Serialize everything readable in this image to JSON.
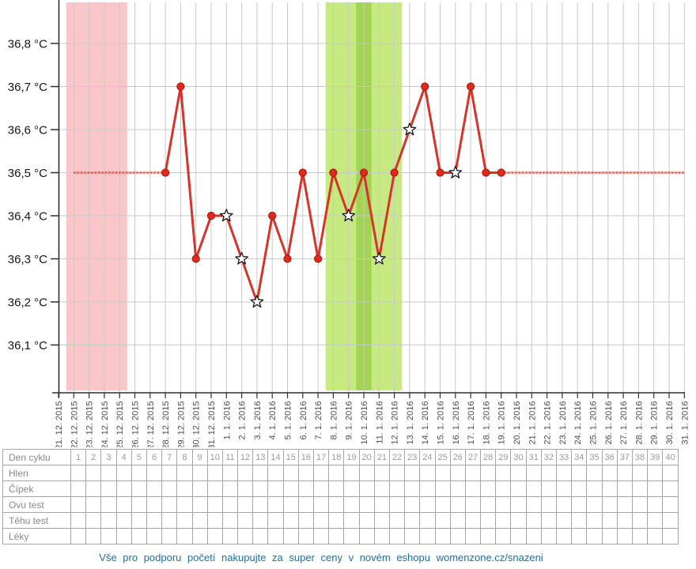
{
  "chart_data": {
    "type": "line",
    "title": "",
    "unit": "°C",
    "ylim": [
      36.0,
      36.9
    ],
    "grid": true,
    "legend": "none",
    "y_ticks": [
      {
        "value": 36.8,
        "label": "36,8 °C"
      },
      {
        "value": 36.7,
        "label": "36,7 °C"
      },
      {
        "value": 36.6,
        "label": "36,6 °C"
      },
      {
        "value": 36.5,
        "label": "36,5 °C"
      },
      {
        "value": 36.4,
        "label": "36,4 °C"
      },
      {
        "value": 36.3,
        "label": "36,3 °C"
      },
      {
        "value": 36.2,
        "label": "36,2 °C"
      },
      {
        "value": 36.1,
        "label": "36,1 °C"
      }
    ],
    "x_dates": [
      "21. 12. 2015",
      "22. 12. 2015",
      "23. 12. 2015",
      "24. 12. 2015",
      "25. 12. 2015",
      "26. 12. 2015",
      "27. 12. 2015",
      "28. 12. 2015",
      "29. 12. 2015",
      "30. 12. 2015",
      "31. 12. 2015",
      "1. 1. 2016",
      "2. 1. 2016",
      "3. 1. 2016",
      "4. 1. 2016",
      "5. 1. 2016",
      "6. 1. 2016",
      "7. 1. 2016",
      "8. 1. 2016",
      "9. 1. 2016",
      "10. 1. 2016",
      "11. 1. 2016",
      "12. 1. 2016",
      "13. 1. 2016",
      "14. 1. 2016",
      "15. 1. 2016",
      "16. 1. 2016",
      "17. 1. 2016",
      "18. 1. 2016",
      "19. 1. 2016",
      "20. 1. 2016",
      "21. 1. 2016",
      "22. 1. 2016",
      "23. 1. 2016",
      "24. 1. 2016",
      "25. 1. 2016",
      "26. 1. 2016",
      "27. 1. 2016",
      "28. 1. 2016",
      "29. 1. 2016",
      "30. 1. 2016",
      "31. 1. 2016"
    ],
    "bands": [
      {
        "name": "menstruation",
        "color": "#f9c7ca",
        "from": "22. 12. 2015",
        "to": "25. 12. 2015"
      },
      {
        "name": "fertile-window",
        "color": "#c6ea80",
        "from": "8. 1. 2016",
        "to": "12. 1. 2016"
      },
      {
        "name": "ovulation-day",
        "color": "#a3d352",
        "from": "10. 1. 2016",
        "to": "10. 1. 2016"
      }
    ],
    "coverline": {
      "temp": 36.5,
      "style": "dotted",
      "color": "#c4372b",
      "segments": [
        {
          "from": "22. 12. 2015",
          "to": "28. 12. 2015"
        },
        {
          "from": "19. 1. 2016",
          "to": "31. 1. 2016"
        }
      ]
    },
    "series": [
      {
        "name": "temperature",
        "color": "#d6342a",
        "points": [
          {
            "date": "28. 12. 2015",
            "temp": 36.5,
            "marker": "dot"
          },
          {
            "date": "29. 12. 2015",
            "temp": 36.7,
            "marker": "dot"
          },
          {
            "date": "30. 12. 2015",
            "temp": 36.3,
            "marker": "dot"
          },
          {
            "date": "31. 12. 2015",
            "temp": 36.4,
            "marker": "dot"
          },
          {
            "date": "1. 1. 2016",
            "temp": 36.4,
            "marker": "star"
          },
          {
            "date": "2. 1. 2016",
            "temp": 36.3,
            "marker": "star"
          },
          {
            "date": "3. 1. 2016",
            "temp": 36.2,
            "marker": "star"
          },
          {
            "date": "4. 1. 2016",
            "temp": 36.4,
            "marker": "dot"
          },
          {
            "date": "5. 1. 2016",
            "temp": 36.3,
            "marker": "dot"
          },
          {
            "date": "6. 1. 2016",
            "temp": 36.5,
            "marker": "dot"
          },
          {
            "date": "7. 1. 2016",
            "temp": 36.3,
            "marker": "dot"
          },
          {
            "date": "8. 1. 2016",
            "temp": 36.5,
            "marker": "dot"
          },
          {
            "date": "9. 1. 2016",
            "temp": 36.4,
            "marker": "star"
          },
          {
            "date": "10. 1. 2016",
            "temp": 36.5,
            "marker": "dot"
          },
          {
            "date": "11. 1. 2016",
            "temp": 36.3,
            "marker": "star"
          },
          {
            "date": "12. 1. 2016",
            "temp": 36.5,
            "marker": "dot"
          },
          {
            "date": "13. 1. 2016",
            "temp": 36.6,
            "marker": "star"
          },
          {
            "date": "14. 1. 2016",
            "temp": 36.7,
            "marker": "dot"
          },
          {
            "date": "15. 1. 2016",
            "temp": 36.5,
            "marker": "dot"
          },
          {
            "date": "16. 1. 2016",
            "temp": 36.5,
            "marker": "star"
          },
          {
            "date": "17. 1. 2016",
            "temp": 36.7,
            "marker": "dot"
          },
          {
            "date": "18. 1. 2016",
            "temp": 36.5,
            "marker": "dot"
          },
          {
            "date": "19. 1. 2016",
            "temp": 36.5,
            "marker": "dot"
          }
        ]
      }
    ]
  },
  "table": {
    "day_row_label": "Den cyklu",
    "days": [
      "1",
      "2",
      "3",
      "4",
      "5",
      "6",
      "7",
      "8",
      "9",
      "10",
      "11",
      "12",
      "13",
      "14",
      "15",
      "16",
      "17",
      "18",
      "19",
      "20",
      "21",
      "22",
      "23",
      "24",
      "25",
      "26",
      "27",
      "28",
      "29",
      "30",
      "31",
      "32",
      "33",
      "34",
      "35",
      "36",
      "37",
      "38",
      "39",
      "40"
    ],
    "row_labels": [
      "Hlen",
      "Čípek",
      "Ovu test",
      "Těhu test",
      "Léky"
    ]
  },
  "footer": {
    "text": "Vše pro podporu početí nakupujte za super ceny v novém eshopu womenzone.cz/snazeni"
  },
  "colors": {
    "line": "#d6342a",
    "point_fill": "#de2a1c",
    "point_stroke": "#a4170d",
    "grid": "#c9c9c9",
    "axis": "#2e2e2e",
    "y_label": "#151515",
    "x_label": "#4c4c52",
    "footer_link": "#1d6fa5",
    "menstruation_band": "#f9c7ca",
    "fertile_band": "#c6ea80",
    "ovulation_band": "#a3d352"
  }
}
